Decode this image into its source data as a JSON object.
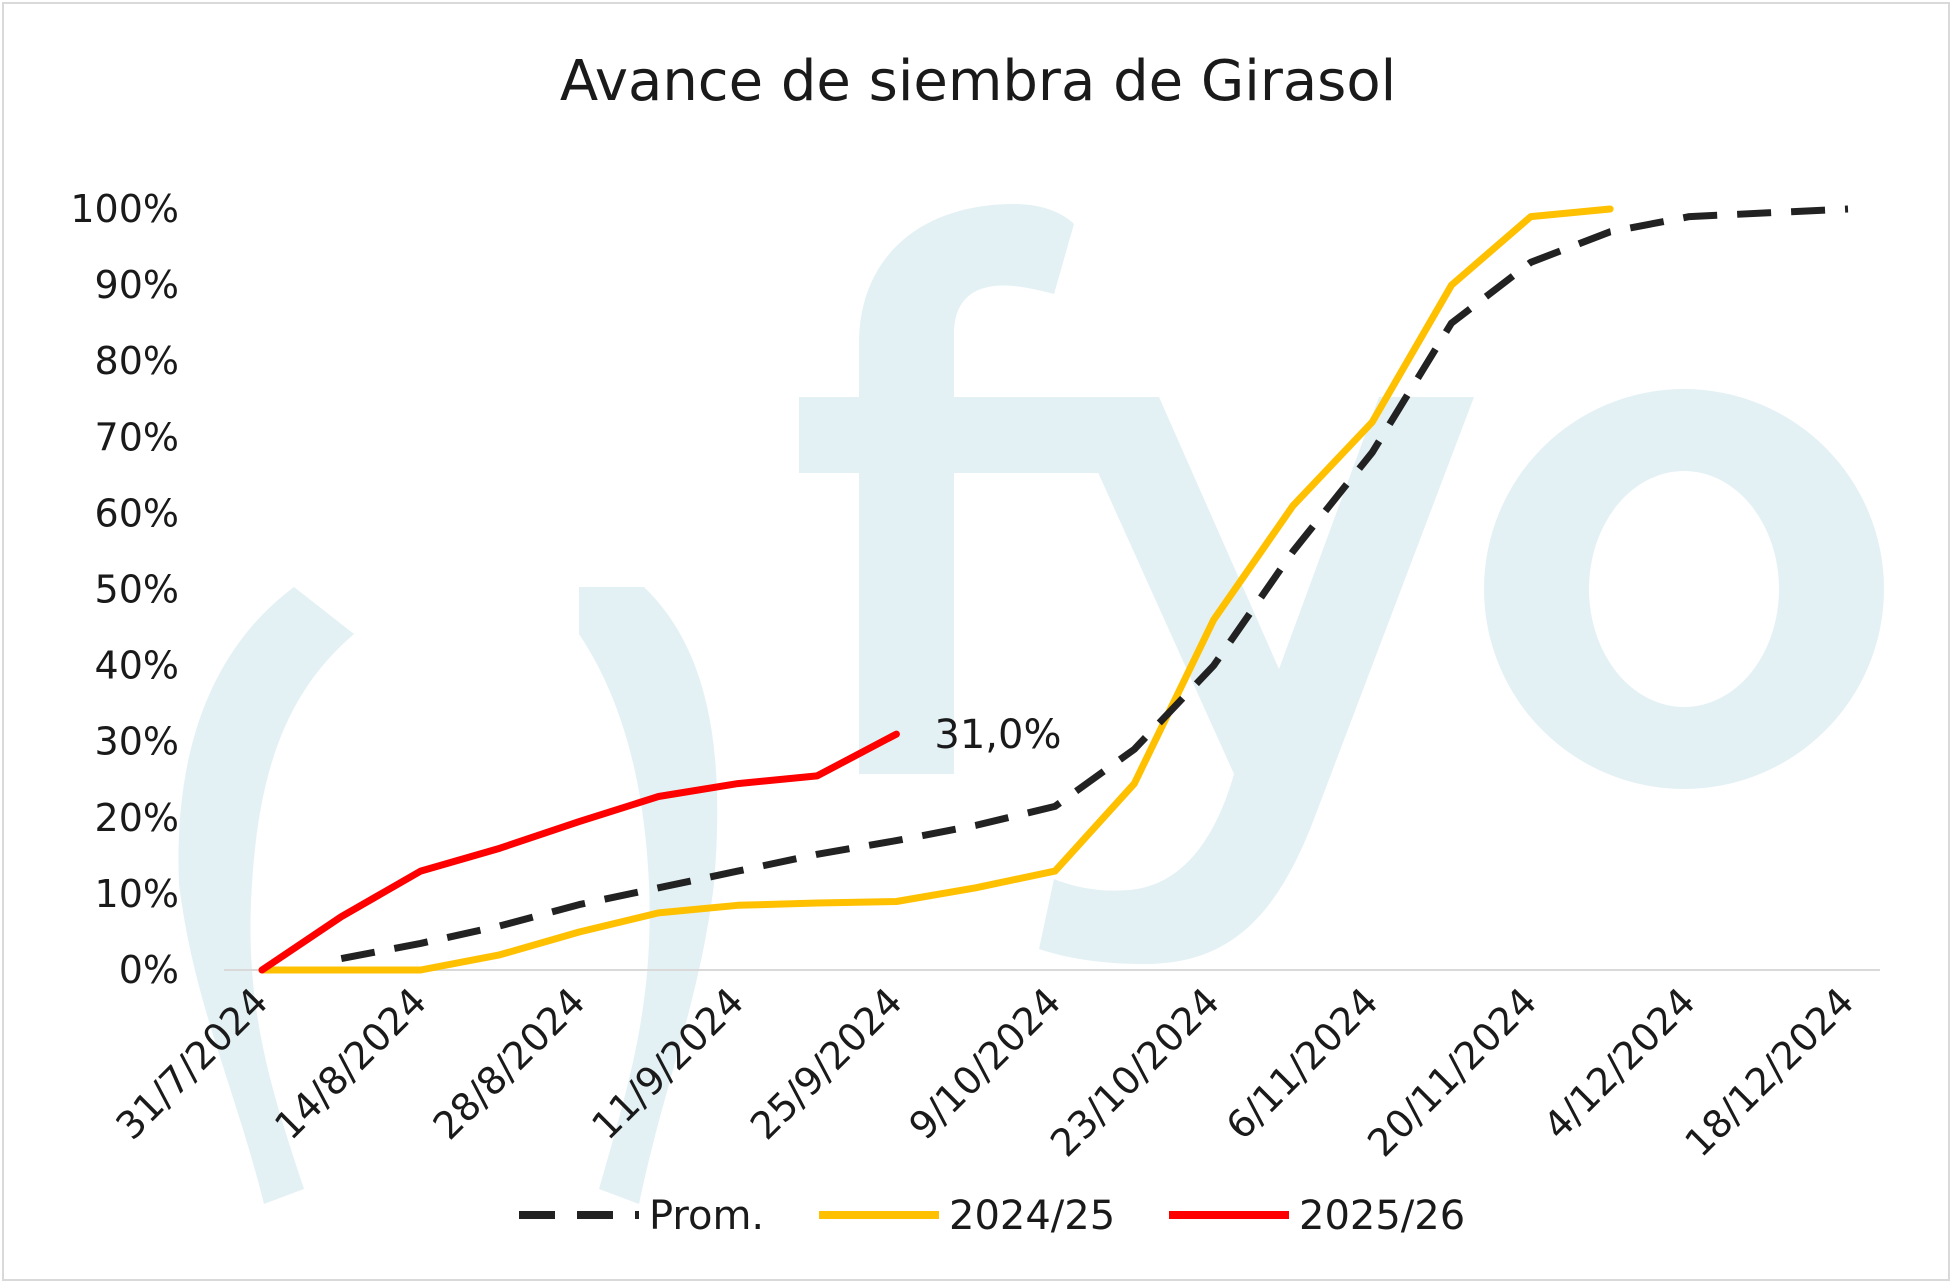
{
  "chart_data": {
    "type": "line",
    "title": "Avance de siembra de Girasol",
    "xlabel": "",
    "ylabel": "",
    "ylim": [
      0,
      100
    ],
    "yticks": [
      "0%",
      "10%",
      "20%",
      "30%",
      "40%",
      "50%",
      "60%",
      "70%",
      "80%",
      "90%",
      "100%"
    ],
    "x_tick_labels": [
      "31/7/2024",
      "14/8/2024",
      "28/8/2024",
      "11/9/2024",
      "25/9/2024",
      "9/10/2024",
      "23/10/2024",
      "6/11/2024",
      "20/11/2024",
      "4/12/2024",
      "18/12/2024"
    ],
    "x_dates": [
      "2024-07-31",
      "2024-08-07",
      "2024-08-14",
      "2024-08-21",
      "2024-08-28",
      "2024-09-04",
      "2024-09-11",
      "2024-09-18",
      "2024-09-25",
      "2024-10-02",
      "2024-10-09",
      "2024-10-16",
      "2024-10-23",
      "2024-10-30",
      "2024-11-06",
      "2024-11-13",
      "2024-11-20",
      "2024-11-27",
      "2024-12-04",
      "2024-12-11",
      "2024-12-18"
    ],
    "series": [
      {
        "name": "Prom.",
        "color": "#222222",
        "style": "dashed",
        "values": [
          null,
          1.5,
          3.5,
          5.8,
          8.6,
          10.8,
          13,
          15.2,
          17,
          19,
          21.5,
          29,
          40,
          55,
          68,
          85,
          93,
          97,
          99,
          99.5,
          100
        ]
      },
      {
        "name": "2024/25",
        "color": "#ffc000",
        "style": "solid",
        "values": [
          0,
          0,
          0,
          2,
          5,
          7.5,
          8.5,
          8.8,
          9,
          10.8,
          13,
          24.5,
          46,
          61,
          72,
          90,
          99,
          100,
          null,
          null,
          null
        ]
      },
      {
        "name": "2025/26",
        "color": "#ff0000",
        "style": "solid",
        "values": [
          0,
          7,
          13,
          16,
          19.5,
          22.8,
          24.5,
          25.5,
          31,
          null,
          null,
          null,
          null,
          null,
          null,
          null,
          null,
          null,
          null,
          null,
          null
        ]
      }
    ],
    "annotation": {
      "text": "31,0%",
      "series": "2025/26",
      "x": "2024-09-25",
      "y": 31
    },
    "legend_position": "bottom",
    "grid": false,
    "watermark_text": "fyo"
  }
}
